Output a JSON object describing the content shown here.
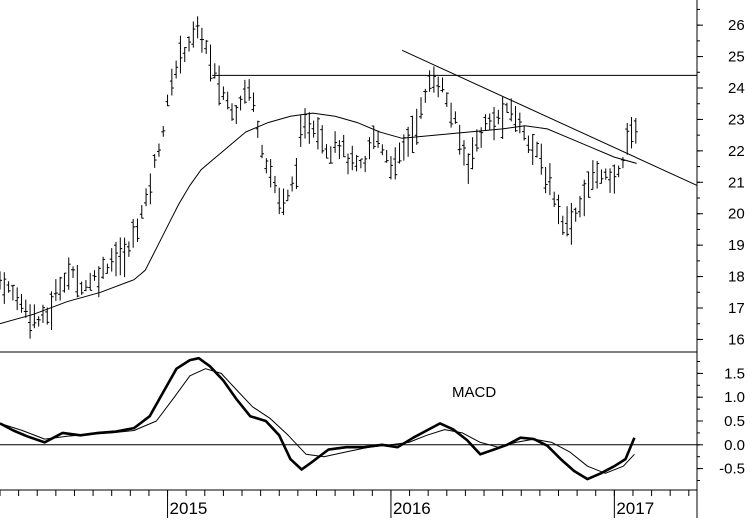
{
  "chart_data": [
    {
      "type": "ohlc",
      "panel": "price",
      "ylim": [
        15.6,
        26.8
      ],
      "ticks": [
        16,
        17,
        18,
        19,
        20,
        21,
        22,
        23,
        24,
        25,
        26
      ],
      "tick_labels": [
        "16",
        "17",
        "18",
        "19",
        "20",
        "21",
        "22",
        "23",
        "24",
        "25",
        "26"
      ],
      "x_range": [
        2014.25,
        2017.37
      ],
      "anchors": [
        [
          2014.25,
          17.9
        ],
        [
          2014.3,
          17.5
        ],
        [
          2014.33,
          17.3
        ],
        [
          2014.37,
          17.0
        ],
        [
          2014.4,
          16.7
        ],
        [
          2014.43,
          16.6
        ],
        [
          2014.47,
          16.8
        ],
        [
          2014.5,
          17.4
        ],
        [
          2014.53,
          17.9
        ],
        [
          2014.56,
          18.1
        ],
        [
          2014.6,
          17.9
        ],
        [
          2014.63,
          17.7
        ],
        [
          2014.66,
          17.9
        ],
        [
          2014.7,
          18.1
        ],
        [
          2014.73,
          18.4
        ],
        [
          2014.76,
          18.7
        ],
        [
          2014.8,
          18.5
        ],
        [
          2014.83,
          18.9
        ],
        [
          2014.86,
          19.6
        ],
        [
          2014.9,
          20.3
        ],
        [
          2014.94,
          21.5
        ],
        [
          2014.98,
          22.7
        ],
        [
          2015.02,
          24.2
        ],
        [
          2015.06,
          25.1
        ],
        [
          2015.1,
          25.5
        ],
        [
          2015.13,
          25.8
        ],
        [
          2015.16,
          25.6
        ],
        [
          2015.2,
          24.6
        ],
        [
          2015.23,
          24.1
        ],
        [
          2015.26,
          23.7
        ],
        [
          2015.3,
          23.2
        ],
        [
          2015.33,
          23.7
        ],
        [
          2015.36,
          24.1
        ],
        [
          2015.39,
          23.4
        ],
        [
          2015.42,
          22.2
        ],
        [
          2015.46,
          21.3
        ],
        [
          2015.5,
          20.5
        ],
        [
          2015.53,
          20.3
        ],
        [
          2015.57,
          21.2
        ],
        [
          2015.6,
          22.5
        ],
        [
          2015.64,
          22.9
        ],
        [
          2015.68,
          22.6
        ],
        [
          2015.72,
          22.0
        ],
        [
          2015.76,
          22.4
        ],
        [
          2015.8,
          21.8
        ],
        [
          2015.84,
          21.5
        ],
        [
          2015.88,
          21.4
        ],
        [
          2015.92,
          22.5
        ],
        [
          2015.95,
          22.3
        ],
        [
          2015.99,
          21.7
        ],
        [
          2016.02,
          21.5
        ],
        [
          2016.06,
          22.2
        ],
        [
          2016.1,
          22.6
        ],
        [
          2016.14,
          23.4
        ],
        [
          2016.18,
          24.3
        ],
        [
          2016.22,
          24.2
        ],
        [
          2016.26,
          23.4
        ],
        [
          2016.3,
          22.6
        ],
        [
          2016.34,
          21.6
        ],
        [
          2016.38,
          22.2
        ],
        [
          2016.42,
          22.8
        ],
        [
          2016.46,
          22.9
        ],
        [
          2016.5,
          23.1
        ],
        [
          2016.54,
          23.3
        ],
        [
          2016.58,
          22.8
        ],
        [
          2016.62,
          22.4
        ],
        [
          2016.66,
          21.8
        ],
        [
          2016.7,
          21.1
        ],
        [
          2016.74,
          20.4
        ],
        [
          2016.78,
          19.6
        ],
        [
          2016.82,
          19.9
        ],
        [
          2016.86,
          20.5
        ],
        [
          2016.9,
          21.1
        ],
        [
          2016.94,
          21.4
        ],
        [
          2016.98,
          20.9
        ],
        [
          2017.02,
          21.3
        ],
        [
          2017.06,
          22.4
        ],
        [
          2017.1,
          22.8
        ]
      ],
      "moving_average": [
        [
          2014.25,
          16.5
        ],
        [
          2014.4,
          16.8
        ],
        [
          2014.55,
          17.2
        ],
        [
          2014.7,
          17.5
        ],
        [
          2014.85,
          17.9
        ],
        [
          2014.9,
          18.2
        ],
        [
          2014.95,
          18.9
        ],
        [
          2015.0,
          19.6
        ],
        [
          2015.05,
          20.3
        ],
        [
          2015.1,
          20.9
        ],
        [
          2015.15,
          21.4
        ],
        [
          2015.2,
          21.7
        ],
        [
          2015.25,
          22.0
        ],
        [
          2015.3,
          22.3
        ],
        [
          2015.35,
          22.6
        ],
        [
          2015.45,
          22.9
        ],
        [
          2015.55,
          23.1
        ],
        [
          2015.65,
          23.2
        ],
        [
          2015.75,
          23.1
        ],
        [
          2015.85,
          22.9
        ],
        [
          2015.95,
          22.6
        ],
        [
          2016.05,
          22.4
        ],
        [
          2016.2,
          22.5
        ],
        [
          2016.35,
          22.6
        ],
        [
          2016.5,
          22.7
        ],
        [
          2016.6,
          22.8
        ],
        [
          2016.7,
          22.7
        ],
        [
          2016.8,
          22.4
        ],
        [
          2016.9,
          22.1
        ],
        [
          2017.0,
          21.8
        ],
        [
          2017.1,
          21.6
        ]
      ],
      "resistance_line": {
        "y": 24.4,
        "x0": 2015.2,
        "x1": 2017.37
      },
      "trend_line": {
        "x0": 2016.05,
        "y0": 25.2,
        "x1": 2017.37,
        "y1": 20.9
      }
    },
    {
      "type": "line",
      "panel": "macd",
      "annotation": "MACD",
      "ylim": [
        -0.95,
        1.95
      ],
      "ticks": [
        -0.5,
        0.0,
        0.5,
        1.0,
        1.5
      ],
      "tick_labels": [
        "-0.5",
        "0.0",
        "0.5",
        "1.0",
        "1.5"
      ],
      "zero_line": 0.0,
      "x_axis_labels": [
        "2015",
        "2016",
        "2017"
      ],
      "x_axis_label_positions": [
        2015.0,
        2016.0,
        2017.0
      ],
      "series": [
        {
          "style": "thick",
          "x": [
            2014.25,
            2014.31,
            2014.37,
            2014.45,
            2014.53,
            2014.61,
            2014.69,
            2014.77,
            2014.85,
            2014.92,
            2014.98,
            2015.04,
            2015.1,
            2015.14,
            2015.19,
            2015.25,
            2015.31,
            2015.37,
            2015.44,
            2015.5,
            2015.55,
            2015.6,
            2015.65,
            2015.72,
            2015.8,
            2015.88,
            2015.96,
            2016.03,
            2016.1,
            2016.16,
            2016.22,
            2016.28,
            2016.34,
            2016.4,
            2016.46,
            2016.52,
            2016.58,
            2016.64,
            2016.7,
            2016.76,
            2016.82,
            2016.88,
            2016.94,
            2017.0,
            2017.05,
            2017.09
          ],
          "y": [
            0.45,
            0.3,
            0.18,
            0.05,
            0.25,
            0.2,
            0.25,
            0.28,
            0.35,
            0.6,
            1.1,
            1.6,
            1.78,
            1.82,
            1.65,
            1.35,
            0.95,
            0.6,
            0.5,
            0.2,
            -0.3,
            -0.52,
            -0.35,
            -0.1,
            -0.05,
            -0.05,
            0.0,
            -0.05,
            0.15,
            0.3,
            0.45,
            0.32,
            0.1,
            -0.2,
            -0.1,
            0.0,
            0.15,
            0.12,
            -0.02,
            -0.3,
            -0.55,
            -0.72,
            -0.6,
            -0.45,
            -0.3,
            0.15
          ]
        },
        {
          "style": "thin",
          "x": [
            2014.25,
            2014.35,
            2014.45,
            2014.55,
            2014.65,
            2014.75,
            2014.85,
            2014.95,
            2015.03,
            2015.1,
            2015.17,
            2015.24,
            2015.31,
            2015.38,
            2015.46,
            2015.54,
            2015.62,
            2015.7,
            2015.8,
            2015.9,
            2016.0,
            2016.08,
            2016.16,
            2016.24,
            2016.32,
            2016.4,
            2016.48,
            2016.56,
            2016.64,
            2016.72,
            2016.8,
            2016.88,
            2016.96,
            2017.04,
            2017.09
          ],
          "y": [
            0.45,
            0.3,
            0.12,
            0.18,
            0.22,
            0.25,
            0.3,
            0.5,
            1.0,
            1.45,
            1.6,
            1.5,
            1.15,
            0.8,
            0.55,
            0.2,
            -0.2,
            -0.25,
            -0.15,
            -0.05,
            0.0,
            0.05,
            0.2,
            0.32,
            0.25,
            0.05,
            -0.05,
            0.05,
            0.12,
            0.05,
            -0.15,
            -0.45,
            -0.6,
            -0.45,
            -0.2
          ]
        }
      ]
    }
  ]
}
